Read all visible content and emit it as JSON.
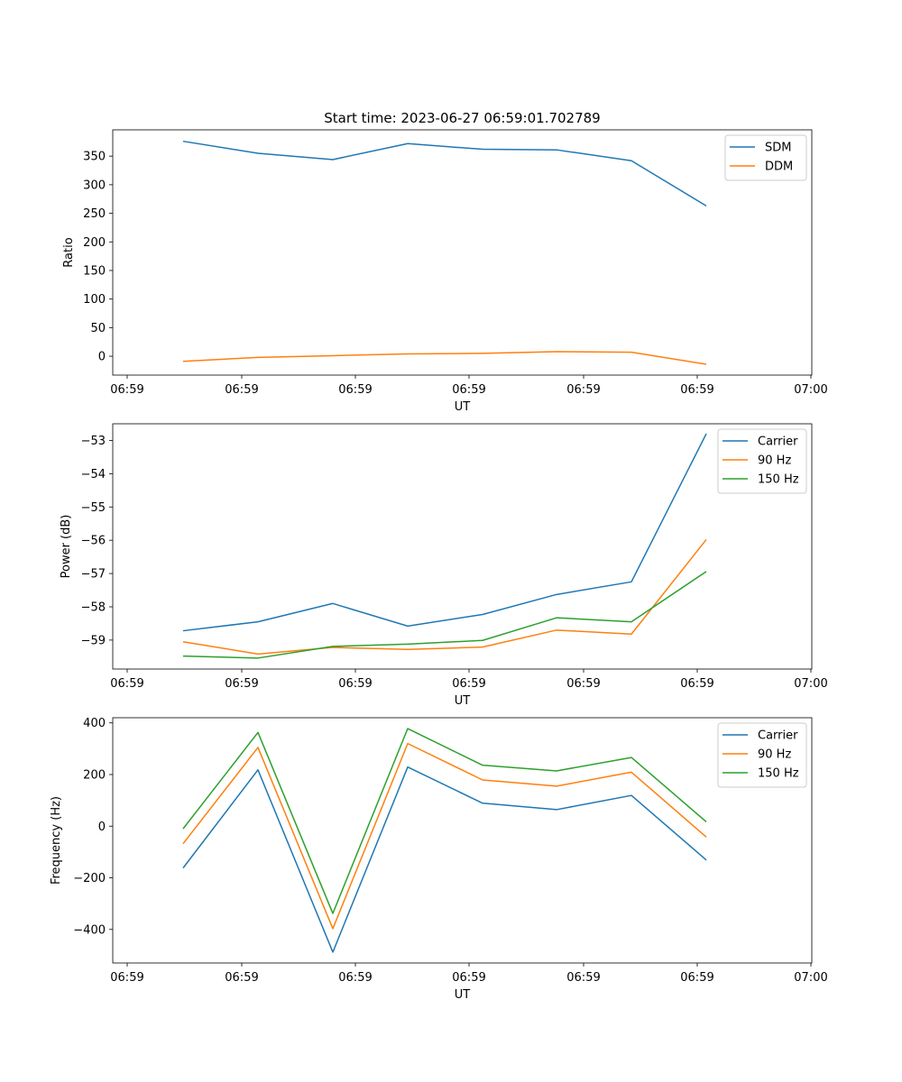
{
  "chart_data": [
    {
      "type": "line",
      "title": "Start time: 2023-06-27 06:59:01.702789",
      "xlabel": "UT",
      "ylabel": "Ratio",
      "x_tick_labels": [
        "06:59",
        "06:59",
        "06:59",
        "06:59",
        "06:59",
        "06:59",
        "07:00"
      ],
      "y_ticks": [
        0,
        50,
        100,
        150,
        200,
        250,
        300,
        350
      ],
      "ylim": [
        -33,
        396
      ],
      "grid": false,
      "legend": "top-right",
      "series": [
        {
          "name": "SDM",
          "color": "#1f77b4",
          "values": [
            376,
            355,
            344,
            372,
            362,
            361,
            342,
            263
          ]
        },
        {
          "name": "DDM",
          "color": "#ff7f0e",
          "values": [
            -9,
            -2,
            1,
            4,
            5,
            8,
            7,
            -14
          ]
        }
      ]
    },
    {
      "type": "line",
      "title": "",
      "xlabel": "UT",
      "ylabel": "Power (dB)",
      "x_tick_labels": [
        "06:59",
        "06:59",
        "06:59",
        "06:59",
        "06:59",
        "06:59",
        "07:00"
      ],
      "y_ticks": [
        -59,
        -58,
        -57,
        -56,
        -55,
        -54,
        -53
      ],
      "ylim": [
        -59.87,
        -52.5
      ],
      "grid": false,
      "legend": "top-right",
      "series": [
        {
          "name": "Carrier",
          "color": "#1f77b4",
          "values": [
            -58.72,
            -58.45,
            -57.9,
            -58.58,
            -58.23,
            -57.63,
            -57.25,
            -52.8
          ]
        },
        {
          "name": "90 Hz",
          "color": "#ff7f0e",
          "values": [
            -59.05,
            -59.42,
            -59.22,
            -59.28,
            -59.21,
            -58.7,
            -58.82,
            -55.98
          ]
        },
        {
          "name": "150 Hz",
          "color": "#2ca02c",
          "values": [
            -59.48,
            -59.54,
            -59.19,
            -59.12,
            -59.01,
            -58.33,
            -58.45,
            -56.94
          ]
        }
      ]
    },
    {
      "type": "line",
      "title": "",
      "xlabel": "UT",
      "ylabel": "Frequency (Hz)",
      "x_tick_labels": [
        "06:59",
        "06:59",
        "06:59",
        "06:59",
        "06:59",
        "06:59",
        "07:00"
      ],
      "y_ticks": [
        -400,
        -200,
        0,
        200,
        400
      ],
      "ylim": [
        -530,
        420
      ],
      "grid": false,
      "legend": "top-right",
      "series": [
        {
          "name": "Carrier",
          "color": "#1f77b4",
          "values": [
            -162,
            218,
            -488,
            229,
            89,
            64,
            119,
            -131
          ]
        },
        {
          "name": "90 Hz",
          "color": "#ff7f0e",
          "values": [
            -68,
            305,
            -397,
            320,
            179,
            155,
            209,
            -42
          ]
        },
        {
          "name": "150 Hz",
          "color": "#2ca02c",
          "values": [
            -10,
            363,
            -338,
            378,
            236,
            214,
            266,
            17
          ]
        }
      ]
    }
  ]
}
